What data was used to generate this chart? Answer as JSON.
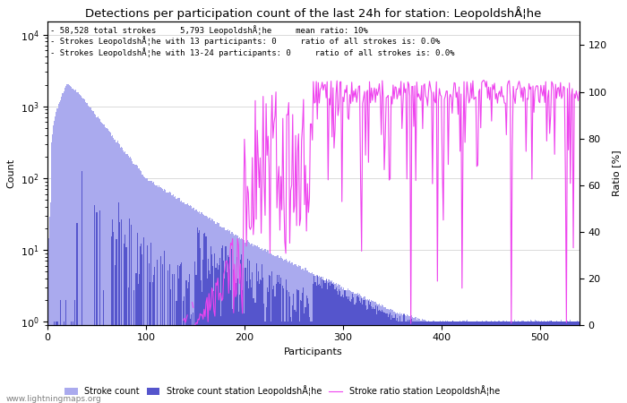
{
  "title": "Detections per participation count of the last 24h for station: LeopoldshÅ¦he",
  "annotation_lines": [
    "58,528 total strokes     5,793 LeopoldshÅ¦he     mean ratio: 10%",
    "Strokes LeopoldshÅ¦he with 13 participants: 0     ratio of all strokes is: 0.0%",
    "Strokes LeopoldshÅ¦he with 13-24 participants: 0     ratio of all strokes is: 0.0%"
  ],
  "xlabel": "Participants",
  "ylabel_left": "Count",
  "ylabel_right": "Ratio [%]",
  "xlim": [
    0,
    540
  ],
  "ylim_right": [
    0,
    130
  ],
  "yticks_right": [
    0,
    20,
    40,
    60,
    80,
    100,
    120
  ],
  "bar_color_all": "#aaaaee",
  "bar_color_station": "#5555cc",
  "line_color_ratio": "#ee44ee",
  "watermark": "www.lightningmaps.org",
  "legend_entries": [
    "Stroke count",
    "Stroke count station LeopoldshÅ¦he",
    "Stroke ratio station LeopoldshÅ¦he"
  ]
}
